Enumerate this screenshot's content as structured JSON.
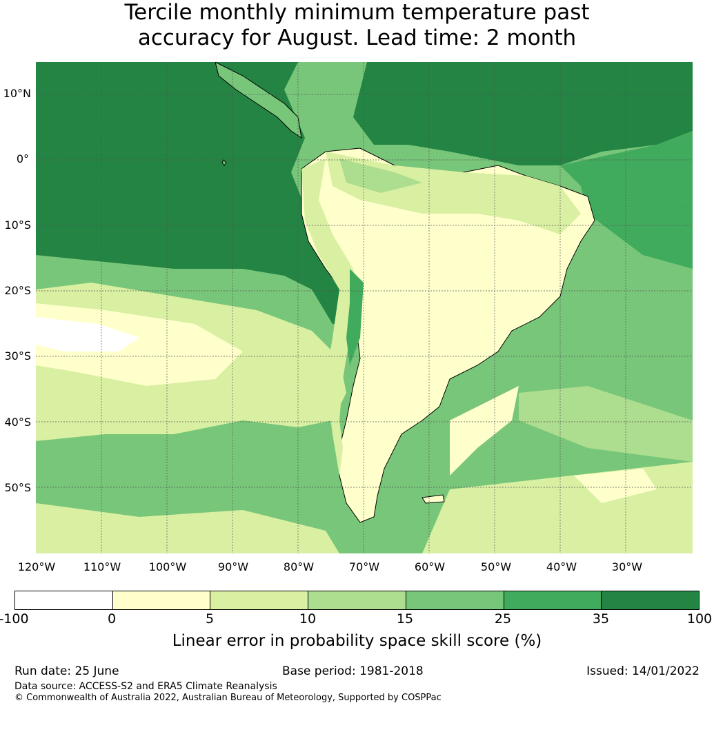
{
  "title_line1": "Tercile monthly minimum temperature past",
  "title_line2": "accuracy for August. Lead time: 2 month",
  "map": {
    "lat_labels": [
      "10°N",
      "0°",
      "10°S",
      "20°S",
      "30°S",
      "40°S",
      "50°S"
    ],
    "lon_labels": [
      "120°W",
      "110°W",
      "100°W",
      "90°W",
      "80°W",
      "70°W",
      "60°W",
      "50°W",
      "40°W",
      "30°W"
    ]
  },
  "legend": {
    "colors": [
      "#ffffff",
      "#ffffcc",
      "#d9f0a3",
      "#addd8e",
      "#78c679",
      "#41ab5d",
      "#238443"
    ],
    "ticks": [
      "-100",
      "0",
      "5",
      "10",
      "15",
      "25",
      "35",
      "100"
    ],
    "label": "Linear error in probability space skill score (%)"
  },
  "footer": {
    "run_date": "Run date: 25 June",
    "base_period": "Base period: 1981-2018",
    "issued": "Issued: 14/01/2022",
    "data_source": "Data source: ACCESS-S2 and ERA5 Climate Reanalysis",
    "copyright": "© Commonwealth of Australia 2022, Australian Bureau of Meteorology, Supported by COSPPac"
  }
}
